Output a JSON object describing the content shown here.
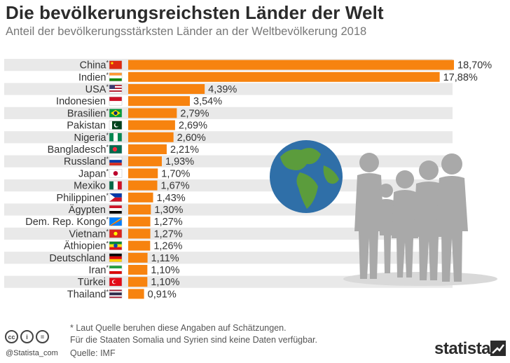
{
  "header": {
    "title": "Die bevölkerungsreichsten Länder der Welt",
    "subtitle": "Anteil der bevölkerungsstärksten Länder an der Weltbevölkerung 2018"
  },
  "chart_data": {
    "type": "bar",
    "orientation": "horizontal",
    "categories": [
      "China*",
      "Indien*",
      "USA*",
      "Indonesien",
      "Brasilien*",
      "Pakistan",
      "Nigeria*",
      "Bangladesch*",
      "Russland*",
      "Japan*",
      "Mexiko",
      "Philippinen*",
      "Ägypten",
      "Dem. Rep. Kongo*",
      "Vietnam*",
      "Äthiopien*",
      "Deutschland",
      "Iran*",
      "Türkei",
      "Thailand*"
    ],
    "values": [
      18.7,
      17.88,
      4.39,
      3.54,
      2.79,
      2.69,
      2.6,
      2.21,
      1.93,
      1.7,
      1.67,
      1.43,
      1.3,
      1.27,
      1.27,
      1.26,
      1.11,
      1.1,
      1.1,
      0.91
    ],
    "value_labels": [
      "18,70%",
      "17,88%",
      "4,39%",
      "3,54%",
      "2,79%",
      "2,69%",
      "2,60%",
      "2,21%",
      "1,93%",
      "1,70%",
      "1,67%",
      "1,43%",
      "1,30%",
      "1,27%",
      "1,27%",
      "1,26%",
      "1,11%",
      "1,10%",
      "1,10%",
      "0,91%"
    ],
    "unit": "%",
    "bar_color": "#f7830f",
    "row_stripe_color": "#e9e9e9",
    "legend": "none",
    "grid": false
  },
  "footer": {
    "note1": "* Laut Quelle beruhen diese Angaben auf Schätzungen.",
    "note2": "Für die Staaten Somalia und Syrien sind keine Daten verfügbar.",
    "source": "Quelle: IMF",
    "handle": "@Statista_com",
    "brand": "statista",
    "cc_icons": [
      "cc",
      "i",
      "="
    ]
  },
  "colors": {
    "accent": "#f7830f",
    "title": "#2b2b2b",
    "globe_water": "#2f6fa8",
    "globe_land": "#5b9c3c",
    "people_silhouettes": "#a9a9a9"
  }
}
